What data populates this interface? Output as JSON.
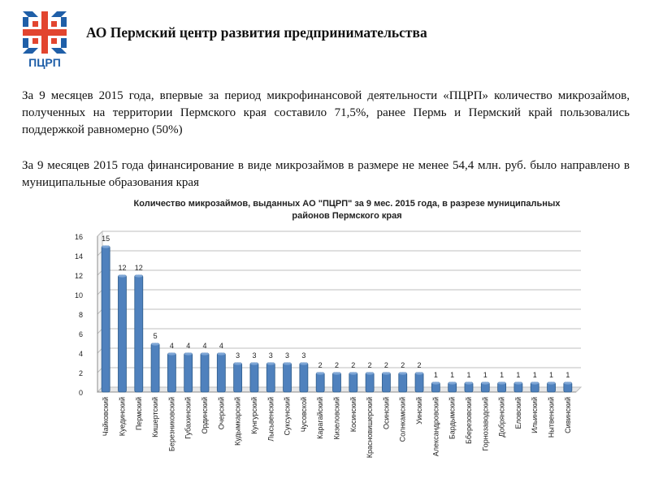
{
  "header": {
    "org_name": "АО Пермский центр развития предпринимательства",
    "logo_text": "ПЦРП",
    "logo_colors": {
      "blue": "#1f5fa8",
      "red": "#e2452f"
    }
  },
  "paragraphs": [
    "За 9 месяцев 2015 года, впервые за период микрофинансовой деятельности «ПЦРП» количество микрозаймов, полученных на территории Пермского края составило 71,5%, ранее Пермь и Пермский край пользовались поддержкой равномерно (50%)",
    "За 9 месяцев 2015 года финансирование в виде микрозаймов в размере не менее 54,4 млн. руб. было направлено в муниципальные образования края"
  ],
  "chart_data": {
    "type": "bar",
    "title": "Количество микрозаймов, выданных АО \"ПЦРП\" за 9 мес. 2015 года, в разрезе муниципальных",
    "subtitle": "районов Пермского края",
    "categories": [
      "Чайковский",
      "Куединский",
      "Пермский",
      "Кишертский",
      "Березниковский",
      "Губахинский",
      "Ординский",
      "Очерский",
      "Кудымкарский",
      "Кунгурский",
      "Лысьвенский",
      "Суксунский",
      "Чусовской",
      "Карагайский",
      "Кизеловский",
      "Косинский",
      "Красновишерский",
      "Осинский",
      "Солнкамский",
      "Уинский",
      "Александровский",
      "Бардымский",
      "Бберезовский",
      "Горнозаводский",
      "Добрянский",
      "Еловский",
      "Ильинский",
      "Нытвенский",
      "Сивинский"
    ],
    "values": [
      15,
      12,
      12,
      5,
      4,
      4,
      4,
      4,
      3,
      3,
      3,
      3,
      3,
      2,
      2,
      2,
      2,
      2,
      2,
      2,
      1,
      1,
      1,
      1,
      1,
      1,
      1,
      1,
      1
    ],
    "ylim": [
      0,
      16
    ],
    "yticks": [
      0,
      2,
      4,
      6,
      8,
      10,
      12,
      14,
      16
    ],
    "xlabel": "",
    "ylabel": "",
    "grid": true,
    "legend": "none",
    "bar_color": "#4f81bd"
  }
}
